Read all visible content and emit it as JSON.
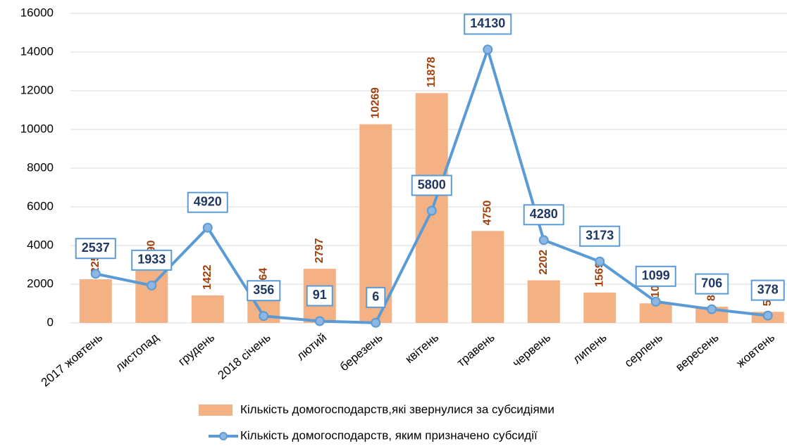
{
  "chart_data": {
    "type": "bar",
    "categories": [
      "2017 жовтень",
      "листопад",
      "грудень",
      "2018 січень",
      "лютий",
      "березень",
      "квітень",
      "травень",
      "червень",
      "липень",
      "серпень",
      "вересень",
      "жовтень"
    ],
    "series": [
      {
        "name": "Кількість домогосподарств,які звернулися за субсидіями",
        "type": "bar",
        "color": "#f4b183",
        "values": [
          2252,
          2690,
          1422,
          1264,
          2797,
          10269,
          11878,
          4750,
          2202,
          1569,
          1011,
          836,
          571
        ]
      },
      {
        "name": "Кількість домогосподарств, яким призначено субсидії",
        "type": "line",
        "color": "#5b9bd5",
        "values": [
          2537,
          1933,
          4920,
          356,
          91,
          6,
          5800,
          14130,
          4280,
          3173,
          1099,
          706,
          378
        ]
      }
    ],
    "ylim": [
      0,
      16000
    ],
    "yticks": [
      0,
      2000,
      4000,
      6000,
      8000,
      10000,
      12000,
      14000,
      16000
    ],
    "grid": true
  }
}
